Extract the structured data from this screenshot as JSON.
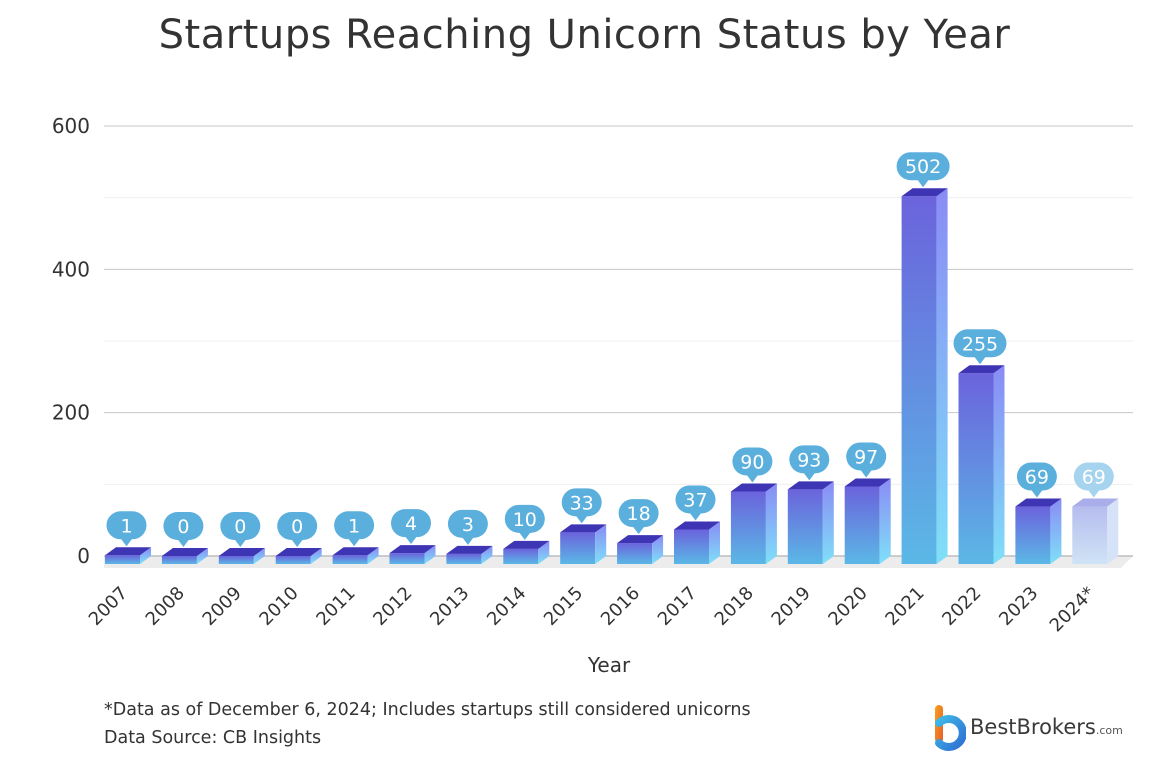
{
  "title": "Startups Reaching Unicorn Status by Year",
  "chart_data": {
    "type": "bar",
    "categories": [
      "2007",
      "2008",
      "2009",
      "2010",
      "2011",
      "2012",
      "2013",
      "2014",
      "2015",
      "2016",
      "2017",
      "2018",
      "2019",
      "2020",
      "2021",
      "2022",
      "2023",
      "2024*"
    ],
    "values": [
      1,
      0,
      0,
      0,
      1,
      4,
      3,
      10,
      33,
      18,
      37,
      90,
      93,
      97,
      502,
      255,
      69,
      69
    ],
    "data_labels": [
      "1",
      "0",
      "0",
      "0",
      "1",
      "4",
      "3",
      "10",
      "33",
      "18",
      "37",
      "90",
      "93",
      "97",
      "502",
      "255",
      "69",
      "69"
    ],
    "highlight_last_faded": true,
    "yticks": [
      "0",
      "200",
      "400",
      "600"
    ],
    "ylim": [
      0,
      600
    ],
    "xlabel": "Year",
    "ylabel": "",
    "grid": true,
    "colors": {
      "bar_top_grad": "#6B63DC",
      "bar_bottom_grad": "#5BB8E6",
      "bar_top_face": "#3E35B5",
      "bar_side": "#7FA8F5",
      "label_bubble": "#5BAFDD",
      "faded_bar": "#C9D4F2"
    }
  },
  "footnotes": {
    "note": "*Data as of December 6, 2024; Includes startups still considered unicorns",
    "source": "Data Source: CB Insights"
  },
  "logo": {
    "name": "BestBrokers",
    "suffix": ".com"
  }
}
